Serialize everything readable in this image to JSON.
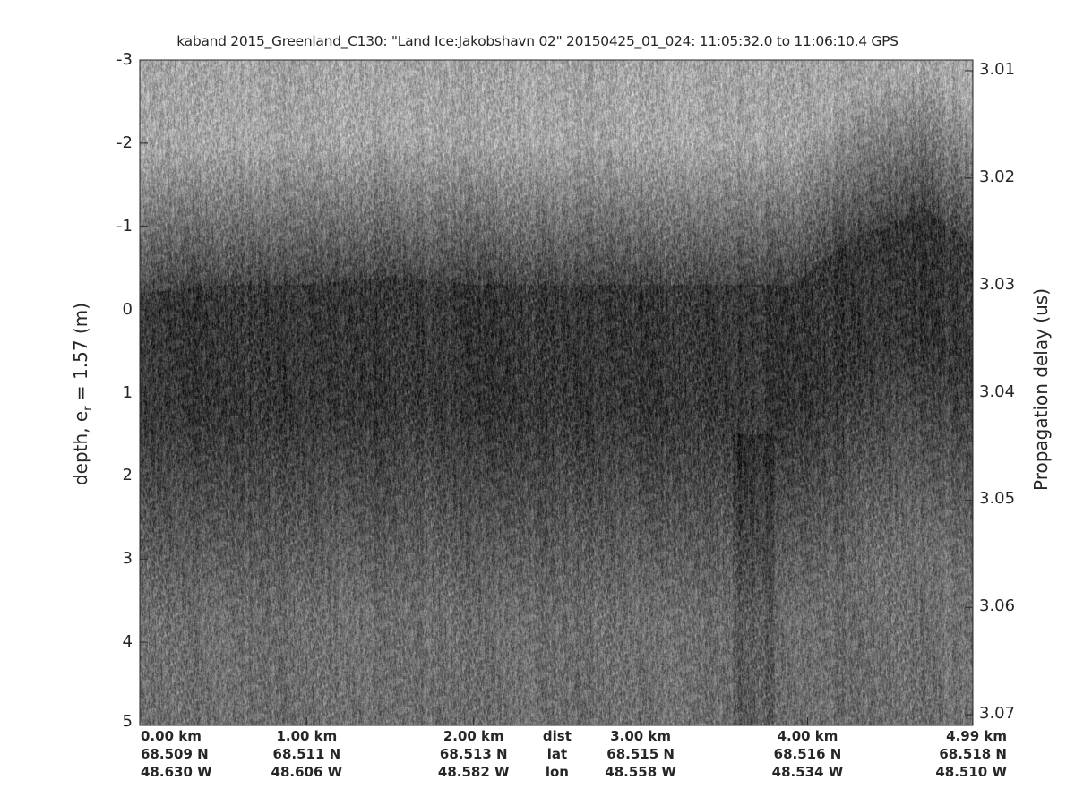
{
  "chart_data": {
    "type": "heatmap",
    "title": "kaband 2015_Greenland_C130: \"Land Ice:Jakobshavn 02\"  20150425_01_024: 11:05:32.0 to 11:06:10.4 GPS",
    "colormap": "gray",
    "ylabel_left": {
      "main": "depth, e",
      "sub": "r",
      "rest": " = 1.57 (m)"
    },
    "ylabel_right": "Propagation delay (us)",
    "ylim_left": [
      -3,
      5
    ],
    "yticks_left": [
      "-3",
      "-2",
      "-1",
      "0",
      "1",
      "2",
      "3",
      "4",
      "5"
    ],
    "yticks_left_values": [
      -3,
      -2,
      -1,
      0,
      1,
      2,
      3,
      4,
      5
    ],
    "ylim_right": [
      3.009,
      3.071
    ],
    "yticks_right": [
      "3.01",
      "3.02",
      "3.03",
      "3.04",
      "3.05",
      "3.06",
      "3.07"
    ],
    "yticks_right_values": [
      3.01,
      3.02,
      3.03,
      3.04,
      3.05,
      3.06,
      3.07
    ],
    "xlim_km": [
      0,
      4.99
    ],
    "x_row_labels": [
      "dist",
      "lat",
      "lon"
    ],
    "x_ticks": [
      {
        "km": 0.0,
        "dist": "0.00 km",
        "lat": "68.509 N",
        "lon": "48.630 W"
      },
      {
        "km": 1.0,
        "dist": "1.00 km",
        "lat": "68.511 N",
        "lon": "48.606 W"
      },
      {
        "km": 2.0,
        "dist": "2.00 km",
        "lat": "68.513 N",
        "lon": "48.582 W"
      },
      {
        "km": 3.0,
        "dist": "3.00 km",
        "lat": "68.515 N",
        "lon": "48.558 W"
      },
      {
        "km": 4.0,
        "dist": "4.00 km",
        "lat": "68.516 N",
        "lon": "48.534 W"
      },
      {
        "km": 4.99,
        "dist": "4.99 km",
        "lat": "68.518 N",
        "lon": "48.510 W"
      }
    ],
    "surface_depth_profile": {
      "km": [
        0.0,
        0.5,
        1.0,
        1.5,
        2.0,
        2.5,
        3.0,
        3.5,
        3.9,
        4.3,
        4.7,
        4.99
      ],
      "depth": [
        0.1,
        0.0,
        0.0,
        -0.1,
        0.0,
        0.0,
        0.0,
        0.0,
        0.0,
        -0.6,
        -0.9,
        -0.5
      ]
    }
  }
}
